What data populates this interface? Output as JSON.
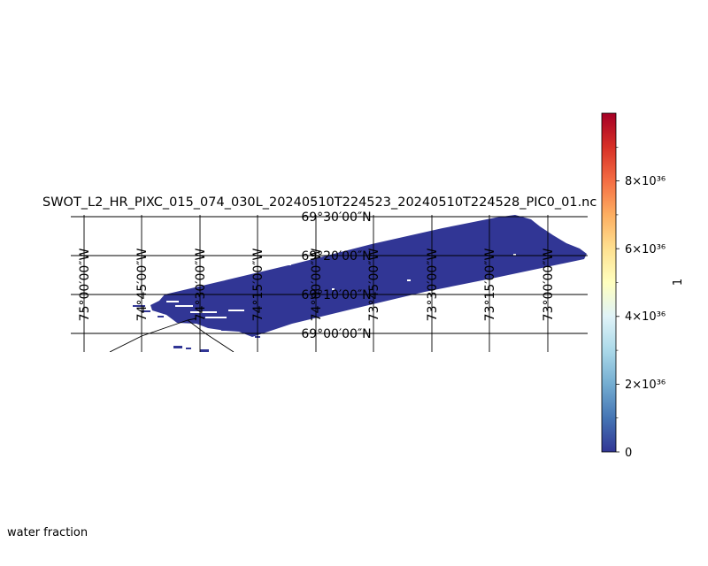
{
  "title": "SWOT_L2_HR_PIXC_015_074_030L_20240510T224523_20240510T224528_PIC0_01.nc",
  "caption": "water fraction",
  "map": {
    "projection": "orthographic",
    "lon_range_deg": [
      -75.0,
      -72.9
    ],
    "lat_range_deg": [
      68.97,
      69.49
    ],
    "swath_color": "#313695",
    "lat_labels": [
      "69°30′00″N",
      "69°20′00″N",
      "69°10′00″N",
      "69°00′00″N"
    ],
    "lon_labels": [
      "75°00′00″W",
      "74°45′00″W",
      "74°30′00″W",
      "74°15′00″W",
      "74°00′00″W",
      "73°45′00″W",
      "73°30′00″W",
      "73°15′00″W",
      "73°00′00″W"
    ]
  },
  "colorbar": {
    "label": "1",
    "colormap": "RdYlBu_r",
    "range": [
      0,
      1e+37
    ],
    "ticks": [
      "0",
      "2×10³⁶",
      "4×10³⁶",
      "6×10³⁶",
      "8×10³⁶"
    ],
    "stops": [
      "#313695",
      "#4575b4",
      "#74add1",
      "#abd9e9",
      "#e0f3f8",
      "#ffffbf",
      "#fee090",
      "#fdae61",
      "#f46d43",
      "#d73027",
      "#a50026"
    ]
  }
}
